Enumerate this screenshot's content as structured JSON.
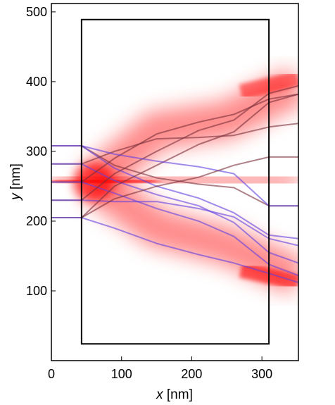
{
  "chart_data": {
    "type": "line",
    "xlabel_var": "x",
    "xlabel_unit": "[nm]",
    "ylabel_var": "y",
    "ylabel_unit": "[nm]",
    "xlim": [
      0,
      352
    ],
    "ylim": [
      0,
      512
    ],
    "xticks": [
      0,
      100,
      200,
      300
    ],
    "yticks": [
      100,
      200,
      300,
      400,
      500
    ],
    "grid": false,
    "legend": "none",
    "colors": {
      "intensity": "#ff0000",
      "ray_red_end": "#7a2f3a",
      "ray_blue_end": "#6040e0",
      "box": "#000000"
    },
    "box": {
      "x": [
        43,
        310
      ],
      "y": [
        24,
        489
      ]
    },
    "beam": {
      "center": [
        [
          0,
          256
        ],
        [
          60,
          256
        ],
        [
          150,
          258
        ],
        [
          250,
          262
        ],
        [
          352,
          256
        ]
      ],
      "upper_branch": [
        [
          60,
          256
        ],
        [
          150,
          330
        ],
        [
          250,
          345
        ],
        [
          352,
          395
        ]
      ],
      "lower_branch": [
        [
          60,
          256
        ],
        [
          150,
          190
        ],
        [
          250,
          165
        ],
        [
          352,
          120
        ]
      ]
    },
    "rays": [
      {
        "color": "red",
        "points": [
          [
            0,
            308
          ],
          [
            43,
            308
          ],
          [
            90,
            280
          ],
          [
            150,
            262
          ],
          [
            210,
            253
          ],
          [
            260,
            248
          ],
          [
            310,
            222
          ],
          [
            352,
            222
          ]
        ]
      },
      {
        "color": "blue",
        "points": [
          [
            0,
            308
          ],
          [
            43,
            308
          ],
          [
            90,
            276
          ],
          [
            150,
            250
          ],
          [
            210,
            233
          ],
          [
            260,
            212
          ],
          [
            310,
            180
          ],
          [
            352,
            175
          ]
        ]
      },
      {
        "color": "red",
        "points": [
          [
            0,
            282
          ],
          [
            43,
            282
          ],
          [
            90,
            300
          ],
          [
            150,
            318
          ],
          [
            210,
            320
          ],
          [
            260,
            323
          ],
          [
            310,
            335
          ],
          [
            352,
            340
          ]
        ]
      },
      {
        "color": "blue",
        "points": [
          [
            0,
            282
          ],
          [
            43,
            282
          ],
          [
            90,
            258
          ],
          [
            150,
            238
          ],
          [
            210,
            222
          ],
          [
            260,
            198
          ],
          [
            310,
            155
          ],
          [
            352,
            140
          ]
        ]
      },
      {
        "color": "red",
        "points": [
          [
            0,
            256
          ],
          [
            43,
            256
          ],
          [
            90,
            290
          ],
          [
            150,
            325
          ],
          [
            210,
            342
          ],
          [
            260,
            353
          ],
          [
            310,
            375
          ],
          [
            352,
            382
          ]
        ]
      },
      {
        "color": "blue",
        "points": [
          [
            0,
            256
          ],
          [
            43,
            256
          ],
          [
            90,
            240
          ],
          [
            150,
            218
          ],
          [
            210,
            200
          ],
          [
            260,
            178
          ],
          [
            310,
            138
          ],
          [
            352,
            122
          ]
        ]
      },
      {
        "color": "red",
        "points": [
          [
            0,
            230
          ],
          [
            43,
            230
          ],
          [
            90,
            268
          ],
          [
            150,
            300
          ],
          [
            210,
            330
          ],
          [
            260,
            345
          ],
          [
            310,
            383
          ],
          [
            352,
            394
          ]
        ]
      },
      {
        "color": "blue",
        "points": [
          [
            0,
            230
          ],
          [
            43,
            230
          ],
          [
            90,
            228
          ],
          [
            150,
            228
          ],
          [
            210,
            218
          ],
          [
            260,
            206
          ],
          [
            310,
            175
          ],
          [
            352,
            165
          ]
        ]
      },
      {
        "color": "red",
        "points": [
          [
            0,
            205
          ],
          [
            43,
            205
          ],
          [
            90,
            250
          ],
          [
            150,
            280
          ],
          [
            210,
            310
          ],
          [
            260,
            328
          ],
          [
            310,
            370
          ],
          [
            352,
            382
          ]
        ]
      },
      {
        "color": "blue",
        "points": [
          [
            0,
            205
          ],
          [
            43,
            205
          ],
          [
            90,
            190
          ],
          [
            150,
            168
          ],
          [
            210,
            152
          ],
          [
            260,
            140
          ],
          [
            310,
            125
          ],
          [
            352,
            112
          ]
        ]
      },
      {
        "color": "blue",
        "points": [
          [
            43,
            308
          ],
          [
            90,
            296
          ],
          [
            150,
            286
          ],
          [
            210,
            278
          ],
          [
            260,
            268
          ],
          [
            310,
            222
          ],
          [
            352,
            222
          ]
        ]
      },
      {
        "color": "red",
        "points": [
          [
            43,
            205
          ],
          [
            90,
            232
          ],
          [
            150,
            250
          ],
          [
            210,
            263
          ],
          [
            260,
            280
          ],
          [
            310,
            292
          ],
          [
            352,
            292
          ]
        ]
      }
    ]
  }
}
